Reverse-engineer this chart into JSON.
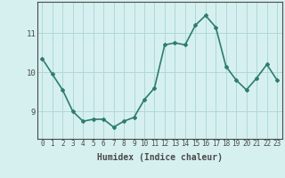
{
  "x": [
    0,
    1,
    2,
    3,
    4,
    5,
    6,
    7,
    8,
    9,
    10,
    11,
    12,
    13,
    14,
    15,
    16,
    17,
    18,
    19,
    20,
    21,
    22,
    23
  ],
  "y": [
    10.35,
    9.95,
    9.55,
    9.0,
    8.75,
    8.8,
    8.8,
    8.6,
    8.75,
    8.85,
    9.3,
    9.6,
    10.7,
    10.75,
    10.7,
    11.2,
    11.45,
    11.15,
    10.15,
    9.8,
    9.55,
    9.85,
    10.2,
    9.8
  ],
  "line_color": "#2d7d6e",
  "marker": "D",
  "marker_size": 2,
  "bg_color": "#d6f0f0",
  "grid_color": "#b0d8d8",
  "axis_color": "#4a4a4a",
  "xlabel": "Humidex (Indice chaleur)",
  "xlabel_fontsize": 7,
  "yticks": [
    9,
    10,
    11
  ],
  "ylim": [
    8.3,
    11.8
  ],
  "xlim": [
    -0.5,
    23.5
  ],
  "line_width": 1.2,
  "tick_fontsize": 5.5
}
